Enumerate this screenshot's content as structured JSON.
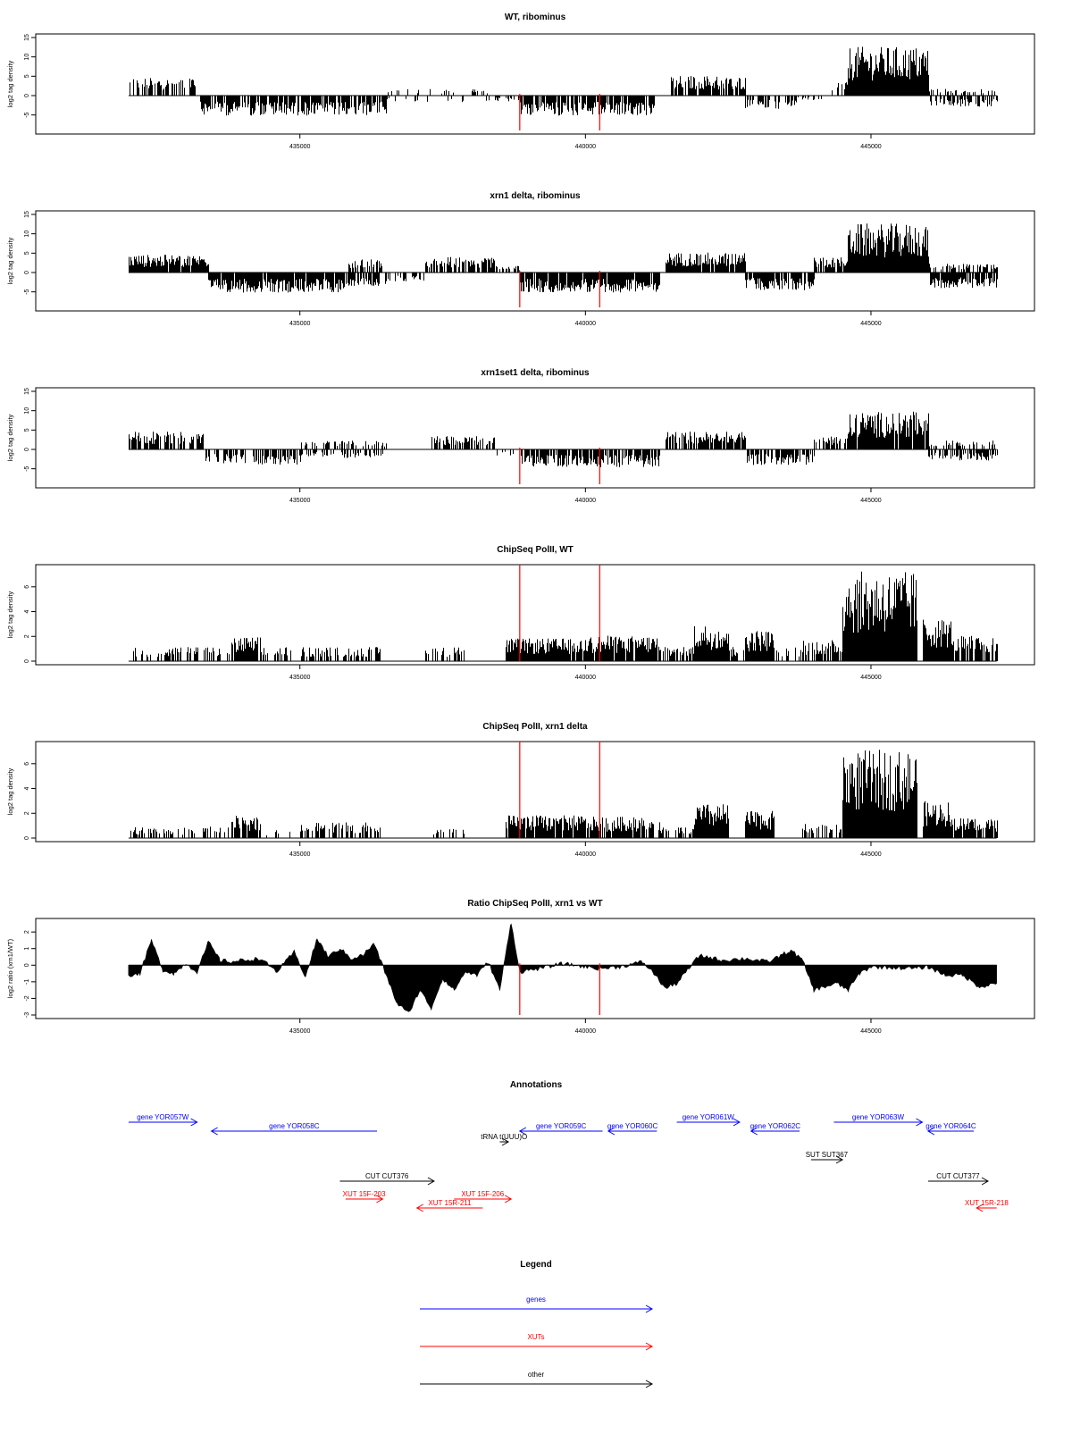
{
  "chart_data": [
    {
      "id": "wt",
      "type": "bar",
      "title": "WT, ribominus",
      "ylabel": "log2 tag density",
      "xlabel": "",
      "xlim": [
        431000,
        447300
      ],
      "ylim": [
        -9,
        15
      ],
      "x_ticks": [
        435000,
        440000,
        445000
      ],
      "y_ticks": [
        -5,
        0,
        5,
        10,
        15
      ],
      "grid": false,
      "vlines": [
        438850,
        440250
      ],
      "profile": [
        {
          "x0": 432000,
          "x1": 433250,
          "y": 4,
          "density": 0.55
        },
        {
          "x0": 433250,
          "x1": 436500,
          "y": -4.5,
          "density": 0.8
        },
        {
          "x0": 436500,
          "x1": 438300,
          "y": -1.5,
          "density": 0.15
        },
        {
          "x0": 436500,
          "x1": 438300,
          "y": 1.5,
          "density": 0.15
        },
        {
          "x0": 438300,
          "x1": 438850,
          "y": -1.5,
          "density": 0.4
        },
        {
          "x0": 438850,
          "x1": 441200,
          "y": -4.5,
          "density": 0.8
        },
        {
          "x0": 441500,
          "x1": 442800,
          "y": 4.5,
          "density": 0.85
        },
        {
          "x0": 442800,
          "x1": 443700,
          "y": -3,
          "density": 0.5
        },
        {
          "x0": 443700,
          "x1": 444300,
          "y": -1,
          "density": 0.2
        },
        {
          "x0": 444300,
          "x1": 444600,
          "y": 3,
          "density": 0.6
        },
        {
          "x0": 444600,
          "x1": 445300,
          "y": 11,
          "density": 1.0
        },
        {
          "x0": 445300,
          "x1": 446000,
          "y": 11,
          "density": 1.0
        },
        {
          "x0": 446000,
          "x1": 447200,
          "y": -2.5,
          "density": 0.6
        },
        {
          "x0": 446000,
          "x1": 447200,
          "y": 1.5,
          "density": 0.3
        }
      ]
    },
    {
      "id": "xrn1",
      "type": "bar",
      "title": "xrn1 delta, ribominus",
      "ylabel": "log2 tag density",
      "xlabel": "",
      "xlim": [
        431000,
        447300
      ],
      "ylim": [
        -9,
        15
      ],
      "x_ticks": [
        435000,
        440000,
        445000
      ],
      "y_ticks": [
        -5,
        0,
        5,
        10,
        15
      ],
      "grid": false,
      "vlines": [
        438850,
        440250
      ],
      "profile": [
        {
          "x0": 432000,
          "x1": 433400,
          "y": 4,
          "density": 0.95
        },
        {
          "x0": 433400,
          "x1": 435800,
          "y": -4.5,
          "density": 0.95
        },
        {
          "x0": 435800,
          "x1": 436500,
          "y": 3,
          "density": 0.7
        },
        {
          "x0": 435800,
          "x1": 436500,
          "y": -3,
          "density": 0.6
        },
        {
          "x0": 436500,
          "x1": 437200,
          "y": -2,
          "density": 0.35
        },
        {
          "x0": 437200,
          "x1": 438400,
          "y": 3.5,
          "density": 0.8
        },
        {
          "x0": 438400,
          "x1": 438850,
          "y": 1.5,
          "density": 0.4
        },
        {
          "x0": 438850,
          "x1": 441300,
          "y": -4.5,
          "density": 0.95
        },
        {
          "x0": 441400,
          "x1": 442800,
          "y": 4.5,
          "density": 0.95
        },
        {
          "x0": 442800,
          "x1": 444000,
          "y": -4,
          "density": 0.8
        },
        {
          "x0": 444000,
          "x1": 444600,
          "y": 3.5,
          "density": 0.8
        },
        {
          "x0": 444600,
          "x1": 446000,
          "y": 11,
          "density": 1.0
        },
        {
          "x0": 446000,
          "x1": 447200,
          "y": -3.5,
          "density": 0.9
        },
        {
          "x0": 446000,
          "x1": 447200,
          "y": 2,
          "density": 0.4
        }
      ]
    },
    {
      "id": "xrn1set1",
      "type": "bar",
      "title": "xrn1set1 delta, ribominus",
      "ylabel": "log2 tag density",
      "xlabel": "",
      "xlim": [
        431000,
        447300
      ],
      "ylim": [
        -9,
        15
      ],
      "x_ticks": [
        435000,
        440000,
        445000
      ],
      "y_ticks": [
        -5,
        0,
        5,
        10,
        15
      ],
      "grid": false,
      "vlines": [
        438850,
        440250
      ],
      "profile": [
        {
          "x0": 432000,
          "x1": 433300,
          "y": 4,
          "density": 0.7
        },
        {
          "x0": 433300,
          "x1": 435000,
          "y": -3.5,
          "density": 0.6
        },
        {
          "x0": 435000,
          "x1": 436500,
          "y": 2,
          "density": 0.35
        },
        {
          "x0": 435000,
          "x1": 436500,
          "y": -2,
          "density": 0.35
        },
        {
          "x0": 437300,
          "x1": 438400,
          "y": 3,
          "density": 0.6
        },
        {
          "x0": 438400,
          "x1": 438850,
          "y": -1.5,
          "density": 0.3
        },
        {
          "x0": 438850,
          "x1": 441300,
          "y": -4,
          "density": 0.8
        },
        {
          "x0": 441400,
          "x1": 442800,
          "y": 4,
          "density": 0.8
        },
        {
          "x0": 442800,
          "x1": 444000,
          "y": -3.5,
          "density": 0.7
        },
        {
          "x0": 444000,
          "x1": 444600,
          "y": 3,
          "density": 0.6
        },
        {
          "x0": 444600,
          "x1": 446000,
          "y": 8.5,
          "density": 0.95
        },
        {
          "x0": 446000,
          "x1": 447200,
          "y": -2.5,
          "density": 0.6
        },
        {
          "x0": 446000,
          "x1": 447200,
          "y": 2,
          "density": 0.35
        }
      ]
    },
    {
      "id": "chip_wt",
      "type": "bar",
      "title": "ChipSeq PolII, WT",
      "ylabel": "log2 tag density",
      "xlabel": "",
      "xlim": [
        431000,
        447300
      ],
      "ylim": [
        0,
        7.5
      ],
      "x_ticks": [
        435000,
        440000,
        445000
      ],
      "y_ticks": [
        0,
        2,
        4,
        6
      ],
      "grid": false,
      "vlines": [
        438850,
        440250
      ],
      "profile": [
        {
          "x0": 432000,
          "x1": 433200,
          "y": 1,
          "density": 0.45
        },
        {
          "x0": 433300,
          "x1": 433800,
          "y": 1,
          "density": 0.5
        },
        {
          "x0": 433800,
          "x1": 434300,
          "y": 1.7,
          "density": 0.9
        },
        {
          "x0": 434300,
          "x1": 434900,
          "y": 1,
          "density": 0.4
        },
        {
          "x0": 435000,
          "x1": 436400,
          "y": 1,
          "density": 0.55
        },
        {
          "x0": 437200,
          "x1": 437900,
          "y": 1,
          "density": 0.3
        },
        {
          "x0": 438600,
          "x1": 440000,
          "y": 1.6,
          "density": 0.95
        },
        {
          "x0": 440000,
          "x1": 441300,
          "y": 1.8,
          "density": 0.9
        },
        {
          "x0": 441300,
          "x1": 441900,
          "y": 1,
          "density": 0.6
        },
        {
          "x0": 441900,
          "x1": 442500,
          "y": 2.6,
          "density": 1.0
        },
        {
          "x0": 442500,
          "x1": 442800,
          "y": 1,
          "density": 0.4
        },
        {
          "x0": 442800,
          "x1": 443300,
          "y": 2.2,
          "density": 0.95
        },
        {
          "x0": 443300,
          "x1": 443800,
          "y": 1,
          "density": 0.3
        },
        {
          "x0": 443800,
          "x1": 444500,
          "y": 1.5,
          "density": 0.6
        },
        {
          "x0": 444500,
          "x1": 445800,
          "y": 6.3,
          "density": 1.0
        },
        {
          "x0": 445900,
          "x1": 446400,
          "y": 3,
          "density": 1.0
        },
        {
          "x0": 446400,
          "x1": 447200,
          "y": 1.8,
          "density": 0.8
        }
      ]
    },
    {
      "id": "chip_xrn1",
      "type": "bar",
      "title": "ChipSeq PolII, xrn1 delta",
      "ylabel": "log2 tag density",
      "xlabel": "",
      "xlim": [
        431000,
        447300
      ],
      "ylim": [
        0,
        7.5
      ],
      "x_ticks": [
        435000,
        440000,
        445000
      ],
      "y_ticks": [
        0,
        2,
        4,
        6
      ],
      "grid": false,
      "vlines": [
        438850,
        440250
      ],
      "profile": [
        {
          "x0": 432000,
          "x1": 433200,
          "y": 0.8,
          "density": 0.4
        },
        {
          "x0": 433300,
          "x1": 433800,
          "y": 0.8,
          "density": 0.3
        },
        {
          "x0": 433800,
          "x1": 434300,
          "y": 1.6,
          "density": 0.9
        },
        {
          "x0": 434300,
          "x1": 434900,
          "y": 0.6,
          "density": 0.3
        },
        {
          "x0": 435000,
          "x1": 436400,
          "y": 1.1,
          "density": 0.6
        },
        {
          "x0": 437300,
          "x1": 437900,
          "y": 0.7,
          "density": 0.3
        },
        {
          "x0": 438600,
          "x1": 440000,
          "y": 1.6,
          "density": 0.95
        },
        {
          "x0": 440000,
          "x1": 441300,
          "y": 1.5,
          "density": 0.85
        },
        {
          "x0": 441300,
          "x1": 441900,
          "y": 0.8,
          "density": 0.5
        },
        {
          "x0": 441900,
          "x1": 442500,
          "y": 2.4,
          "density": 1.0
        },
        {
          "x0": 442800,
          "x1": 443300,
          "y": 1.9,
          "density": 0.95
        },
        {
          "x0": 443800,
          "x1": 444500,
          "y": 1,
          "density": 0.5
        },
        {
          "x0": 444500,
          "x1": 445800,
          "y": 6.2,
          "density": 1.0
        },
        {
          "x0": 445900,
          "x1": 446400,
          "y": 2.6,
          "density": 1.0
        },
        {
          "x0": 446400,
          "x1": 447200,
          "y": 1.4,
          "density": 0.8
        }
      ]
    },
    {
      "id": "ratio",
      "type": "area",
      "title": "Ratio ChipSeq PolII, xrn1 vs WT",
      "ylabel": "log2 ratio (xrn1/WT)",
      "xlabel": "",
      "xlim": [
        431000,
        447300
      ],
      "ylim": [
        -3,
        2.6
      ],
      "x_ticks": [
        435000,
        440000,
        445000
      ],
      "y_ticks": [
        -3,
        -2,
        -1,
        0,
        1,
        2
      ],
      "grid": false,
      "vlines": [
        438850,
        440250
      ],
      "x": [
        432000,
        432200,
        432400,
        432600,
        432800,
        433000,
        433200,
        433400,
        433600,
        433800,
        434000,
        434300,
        434600,
        434900,
        435100,
        435300,
        435500,
        435700,
        435900,
        436100,
        436300,
        436500,
        436700,
        436900,
        437100,
        437300,
        437500,
        437700,
        437900,
        438100,
        438300,
        438500,
        438700,
        438850,
        439200,
        439600,
        440000,
        440250,
        440600,
        441000,
        441200,
        441400,
        441600,
        442000,
        442400,
        442800,
        443200,
        443600,
        443800,
        444000,
        444200,
        444400,
        444600,
        444800,
        445000,
        445400,
        445800,
        446000,
        446300,
        446600,
        446900,
        447200
      ],
      "values": [
        -0.6,
        -0.5,
        1.5,
        -0.3,
        -0.5,
        0.1,
        -0.4,
        1.4,
        0.3,
        0.2,
        0.3,
        0.4,
        -0.4,
        0.8,
        -0.7,
        1.6,
        0.5,
        1.0,
        0.4,
        0.6,
        1.3,
        -0.5,
        -2.3,
        -2.9,
        -1.5,
        -2.6,
        -0.8,
        -1.5,
        -0.4,
        -0.6,
        0.2,
        -1.5,
        2.6,
        -0.4,
        -0.2,
        0.1,
        -0.1,
        -0.2,
        -0.1,
        0.2,
        -0.5,
        -1.4,
        -1.1,
        0.6,
        0.3,
        0.4,
        0.2,
        0.9,
        0.3,
        -1.5,
        -1.3,
        -1.1,
        -1.5,
        -0.5,
        -0.1,
        -0.15,
        -0.2,
        -0.1,
        -0.6,
        -0.6,
        -1.3,
        -1.1
      ]
    }
  ],
  "annotations": {
    "title": "Annotations",
    "xlim": [
      431000,
      447300
    ],
    "features": [
      {
        "label": "gene YOR057W",
        "start": 432000,
        "end": 433200,
        "strand": "+",
        "row": 0,
        "color": "#0000ff"
      },
      {
        "label": "gene YOR058C",
        "start": 433450,
        "end": 436350,
        "strand": "-",
        "row": 1,
        "color": "#0000ff"
      },
      {
        "label": "gene YOR059C",
        "start": 438850,
        "end": 440300,
        "strand": "-",
        "row": 1,
        "color": "#0000ff"
      },
      {
        "label": "gene YOR060C",
        "start": 440400,
        "end": 441250,
        "strand": "-",
        "row": 1,
        "color": "#0000ff"
      },
      {
        "label": "gene YOR061W",
        "start": 441600,
        "end": 442700,
        "strand": "+",
        "row": 0,
        "color": "#0000ff"
      },
      {
        "label": "gene YOR062C",
        "start": 442900,
        "end": 443750,
        "strand": "-",
        "row": 1,
        "color": "#0000ff"
      },
      {
        "label": "gene YOR063W",
        "start": 444350,
        "end": 445900,
        "strand": "+",
        "row": 0,
        "color": "#0000ff"
      },
      {
        "label": "gene YOR064C",
        "start": 446000,
        "end": 446800,
        "strand": "-",
        "row": 1,
        "color": "#0000ff"
      },
      {
        "label": "tRNA t(UUU)O",
        "start": 438500,
        "end": 438650,
        "strand": "+",
        "row": 2,
        "color": "#000000"
      },
      {
        "label": "SUT SUT367",
        "start": 443950,
        "end": 444500,
        "strand": "+",
        "row": 3,
        "color": "#000000"
      },
      {
        "label": "CUT CUT376",
        "start": 435700,
        "end": 437350,
        "strand": "+",
        "row": 4,
        "color": "#000000"
      },
      {
        "label": "CUT CUT377",
        "start": 446000,
        "end": 447050,
        "strand": "+",
        "row": 4,
        "color": "#000000"
      },
      {
        "label": "XUT 15F-203",
        "start": 435800,
        "end": 436450,
        "strand": "+",
        "row": 5,
        "color": "#ff0000"
      },
      {
        "label": "XUT 15F-206",
        "start": 437700,
        "end": 438700,
        "strand": "+",
        "row": 5,
        "color": "#ff0000"
      },
      {
        "label": "XUT 15R-211",
        "start": 437050,
        "end": 438200,
        "strand": "-",
        "row": 6,
        "color": "#ff0000"
      },
      {
        "label": "XUT 15R-218",
        "start": 446850,
        "end": 447200,
        "strand": "-",
        "row": 6,
        "color": "#ff0000"
      }
    ]
  },
  "legend": {
    "title": "Legend",
    "items": [
      {
        "label": "genes",
        "color": "#0000ff"
      },
      {
        "label": "XUTs",
        "color": "#ff0000"
      },
      {
        "label": "other",
        "color": "#000000"
      }
    ]
  }
}
